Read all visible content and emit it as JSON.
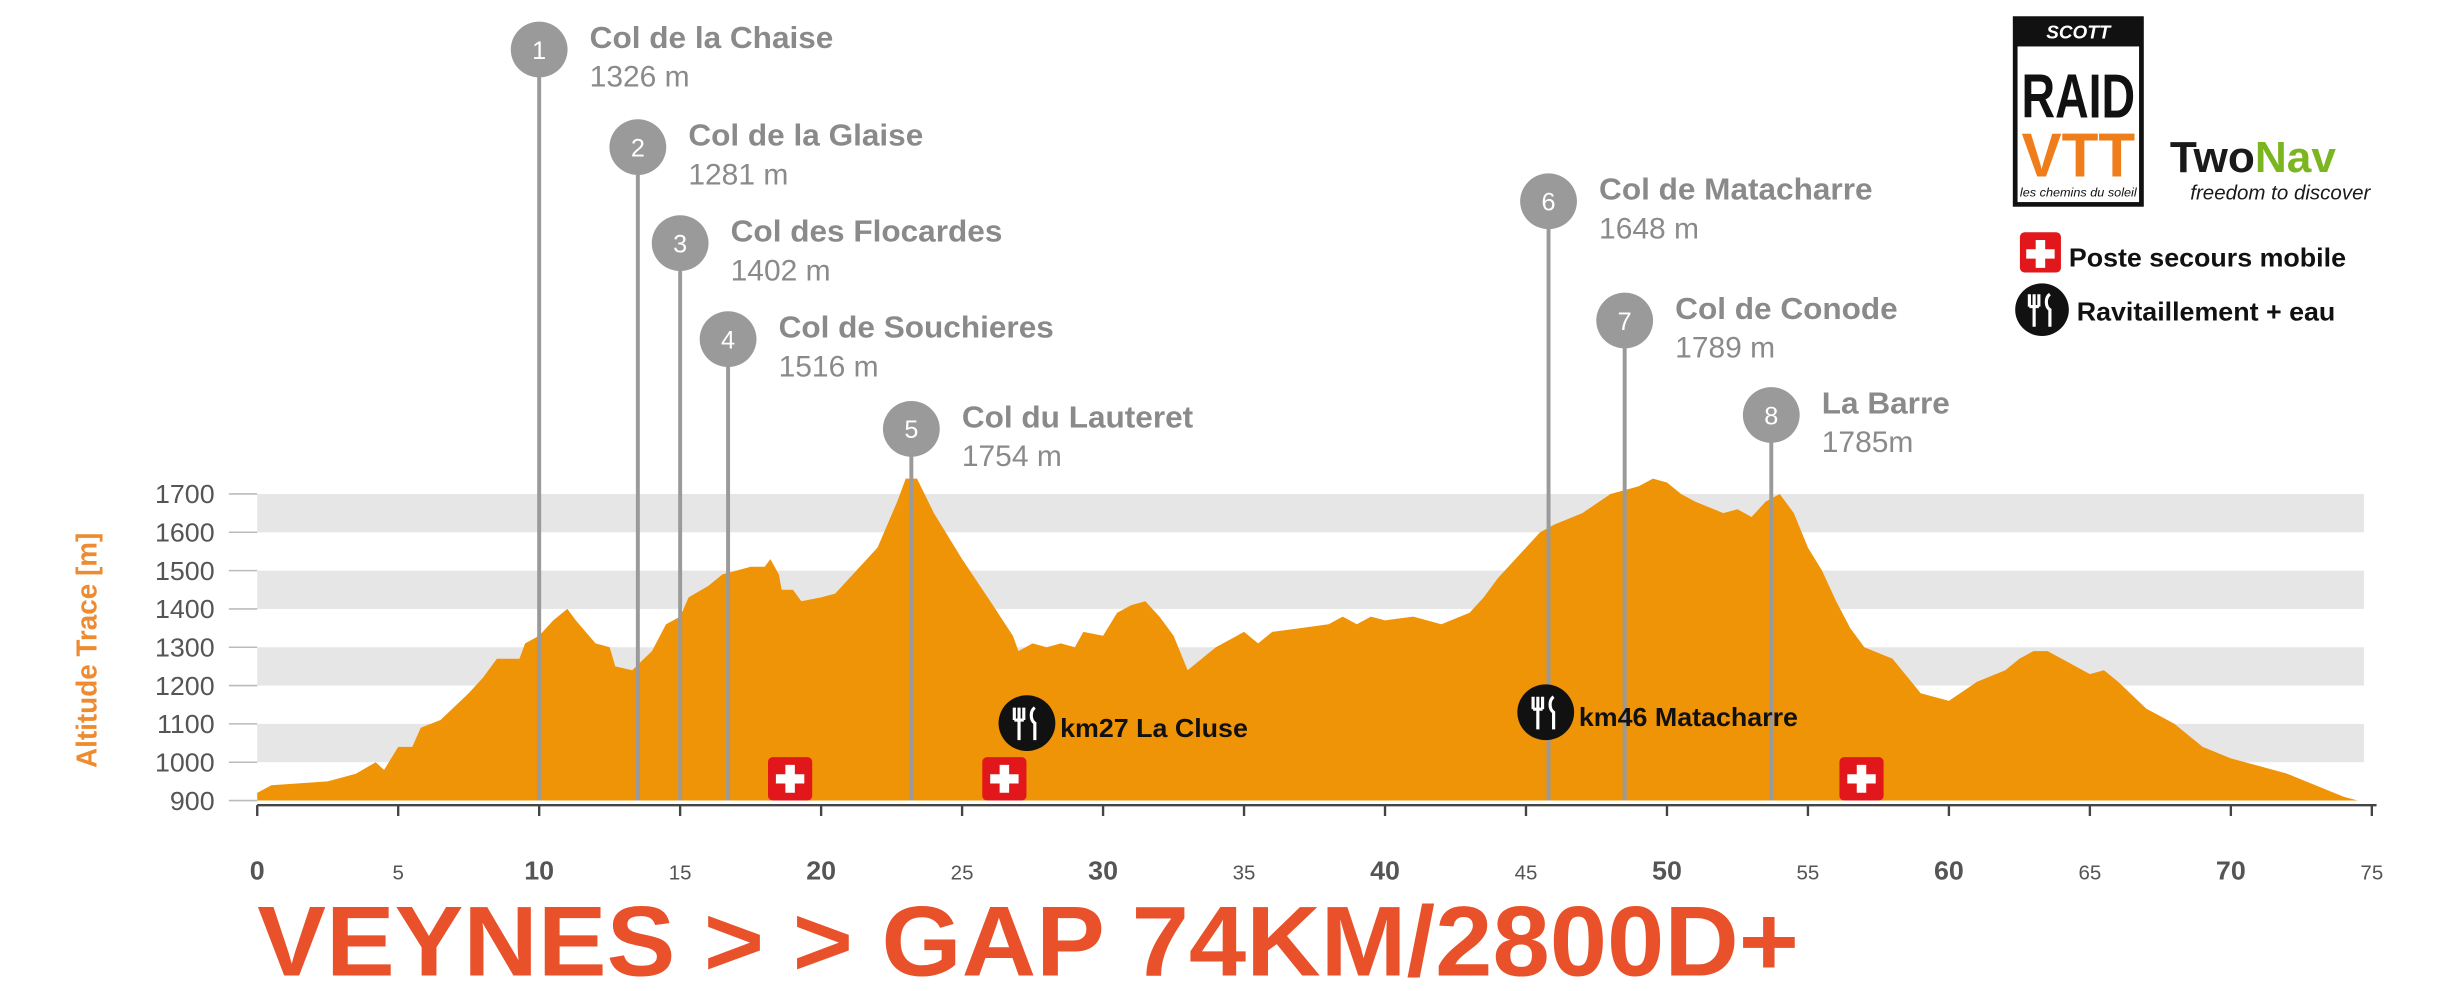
{
  "chart_data": {
    "type": "area",
    "title": "VEYNES > > GAP 74KM/2800D+",
    "y_label": "Altitude Trace [m]",
    "color": "#ef9307",
    "grid": true,
    "xlim": [
      0,
      75
    ],
    "xticks": [
      0,
      5,
      10,
      15,
      20,
      25,
      30,
      35,
      40,
      45,
      50,
      55,
      60,
      65,
      70,
      75
    ],
    "ylim": [
      900,
      1700
    ],
    "yticks": [
      900,
      1000,
      1100,
      1200,
      1300,
      1400,
      1500,
      1600,
      1700
    ],
    "x": [
      0,
      0.5,
      2.5,
      3.5,
      4.2,
      4.5,
      5,
      5.5,
      5.8,
      6.5,
      7.5,
      8,
      8.5,
      9.3,
      9.5,
      10,
      10.5,
      11,
      11.3,
      12,
      12.5,
      12.7,
      13.3,
      14,
      14.5,
      15,
      15.3,
      16,
      16.5,
      17,
      17.5,
      18,
      18.2,
      18.5,
      18.6,
      19,
      19.3,
      20,
      20.5,
      21,
      22,
      22.7,
      23,
      23.4,
      24,
      25,
      26,
      26.8,
      27,
      27.5,
      28,
      28.5,
      29,
      29.3,
      30,
      30.5,
      31,
      31.5,
      32,
      32.5,
      33,
      33.5,
      34,
      34.5,
      35,
      35.5,
      36,
      37,
      38,
      38.5,
      39,
      39.5,
      40,
      41,
      42,
      43,
      43.5,
      44,
      45,
      45.5,
      46,
      47,
      48,
      49,
      49.5,
      50,
      50.5,
      51,
      52,
      52.5,
      53,
      53.5,
      54,
      54.5,
      55,
      55.5,
      56,
      56.5,
      57,
      58,
      59,
      60,
      61,
      62,
      62.5,
      63,
      63.5,
      64,
      65,
      65.5,
      66,
      67,
      68,
      69,
      70,
      71,
      72,
      73,
      74,
      74.5
    ],
    "values": [
      920,
      940,
      950,
      970,
      1000,
      980,
      1040,
      1040,
      1090,
      1110,
      1180,
      1220,
      1270,
      1270,
      1310,
      1330,
      1370,
      1400,
      1370,
      1310,
      1300,
      1250,
      1240,
      1290,
      1360,
      1380,
      1430,
      1460,
      1490,
      1500,
      1510,
      1510,
      1530,
      1490,
      1450,
      1450,
      1420,
      1430,
      1440,
      1480,
      1560,
      1680,
      1740,
      1740,
      1650,
      1530,
      1420,
      1330,
      1290,
      1310,
      1300,
      1310,
      1300,
      1340,
      1330,
      1390,
      1410,
      1420,
      1380,
      1330,
      1240,
      1270,
      1300,
      1320,
      1340,
      1310,
      1340,
      1350,
      1360,
      1380,
      1360,
      1380,
      1370,
      1380,
      1360,
      1390,
      1430,
      1480,
      1560,
      1600,
      1620,
      1650,
      1700,
      1720,
      1740,
      1730,
      1700,
      1680,
      1650,
      1660,
      1640,
      1680,
      1700,
      1650,
      1560,
      1500,
      1420,
      1350,
      1300,
      1270,
      1180,
      1160,
      1210,
      1240,
      1270,
      1290,
      1290,
      1270,
      1230,
      1240,
      1210,
      1140,
      1100,
      1040,
      1010,
      990,
      970,
      940,
      910,
      900
    ],
    "annotations": [
      {
        "number": 1,
        "name": "Col de la Chaise",
        "altitude": "1326 m",
        "x": 10
      },
      {
        "number": 2,
        "name": "Col de la Glaise",
        "altitude": "1281 m",
        "x": 13.5
      },
      {
        "number": 3,
        "name": "Col des Flocardes",
        "altitude": "1402 m",
        "x": 15
      },
      {
        "number": 4,
        "name": "Col de Souchieres",
        "altitude": "1516 m",
        "x": 16.7
      },
      {
        "number": 5,
        "name": "Col du Lauteret",
        "altitude": "1754 m",
        "x": 23.2
      },
      {
        "number": 6,
        "name": "Col de Matacharre",
        "altitude": "1648 m",
        "x": 45.8
      },
      {
        "number": 7,
        "name": "Col de Conode",
        "altitude": "1789 m",
        "x": 48.5
      },
      {
        "number": 8,
        "name": "La Barre",
        "altitude": "1785m",
        "x": 53.7
      }
    ],
    "first_aid": [
      18.9,
      26.5,
      56.9
    ],
    "food_stops": [
      {
        "label": "km27 La Cluse",
        "x": 27.3
      },
      {
        "label": "km46 Matacharre",
        "x": 45.7
      }
    ]
  },
  "legend": {
    "first_aid": "Poste secours mobile",
    "food": "Ravitaillement + eau"
  },
  "logos": {
    "scott": "SCOTT",
    "raid": "RAID",
    "vtt": "VTT",
    "tagline": "les chemins du soleil",
    "twonav": [
      "Two",
      "Nav"
    ],
    "twonav_tagline": "freedom to discover"
  }
}
